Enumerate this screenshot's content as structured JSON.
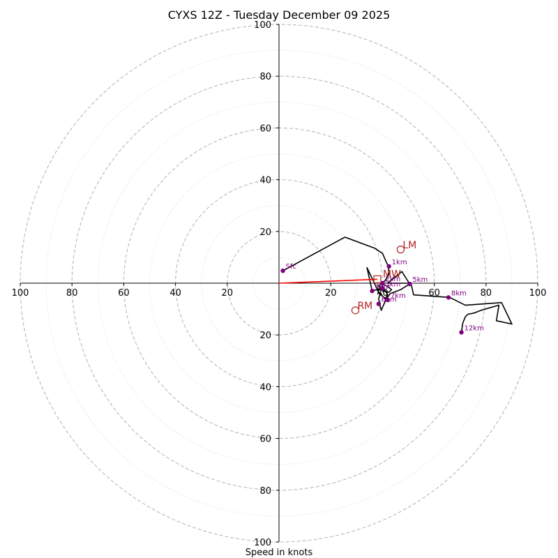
{
  "chart_data": {
    "type": "hodograph",
    "title": "CYXS 12Z - Tuesday December 09 2025",
    "xlabel": "Speed in knots",
    "rmax": 100,
    "ring_major": [
      20,
      40,
      60,
      80,
      100
    ],
    "ring_minor": [
      10,
      30,
      50,
      70,
      90
    ],
    "ticks": {
      "x_left": [
        "100",
        "80",
        "60",
        "40",
        "20"
      ],
      "x_right": [
        "20",
        "40",
        "60",
        "80",
        "100"
      ],
      "y_up": [
        "20",
        "40",
        "60",
        "80",
        "100"
      ],
      "y_down": [
        "20",
        "40",
        "60",
        "80",
        "100"
      ]
    },
    "hodograph_trace": [
      [
        1.5,
        4.8
      ],
      [
        25.5,
        17.8
      ],
      [
        37,
        13.5
      ],
      [
        40,
        11.5
      ],
      [
        42.2,
        6.5
      ],
      [
        42.5,
        3.5
      ],
      [
        41,
        1
      ],
      [
        40,
        0
      ],
      [
        38.5,
        -1
      ],
      [
        40,
        -3
      ],
      [
        42.5,
        -3.5
      ],
      [
        43.5,
        -2.5
      ],
      [
        41.5,
        -1
      ],
      [
        39.5,
        0
      ],
      [
        40.5,
        -2
      ],
      [
        42,
        -4.5
      ],
      [
        41,
        -6
      ],
      [
        38,
        -2.8
      ],
      [
        40,
        -1.8
      ],
      [
        36,
        -3
      ],
      [
        34,
        6
      ],
      [
        39,
        -4.5
      ],
      [
        38.5,
        -6
      ],
      [
        39.5,
        -10.5
      ],
      [
        41.5,
        -6
      ],
      [
        43,
        -4
      ],
      [
        47,
        -2.5
      ],
      [
        50.5,
        -0.3
      ],
      [
        47.5,
        4.5
      ],
      [
        42,
        0
      ],
      [
        51,
        0
      ],
      [
        52,
        -4.5
      ],
      [
        66,
        -5.5
      ],
      [
        72,
        -8.5
      ],
      [
        86,
        -7.5
      ],
      [
        90,
        -15.8
      ],
      [
        84,
        -14.5
      ],
      [
        85,
        -8.5
      ],
      [
        78,
        -10.5
      ],
      [
        75.5,
        -11.5
      ],
      [
        73,
        -12
      ],
      [
        72,
        -13
      ],
      [
        71,
        -15.5
      ],
      [
        70.5,
        -19
      ]
    ],
    "height_labels": [
      {
        "label": "Sfc",
        "u": 1.5,
        "v": 4.8
      },
      {
        "label": "1km",
        "u": 42.5,
        "v": 6.5
      },
      {
        "label": "2km",
        "u": 40,
        "v": 0
      },
      {
        "label": "3km",
        "u": 40,
        "v": -2
      },
      {
        "label": "4km",
        "u": 36,
        "v": -3
      },
      {
        "label": "5km",
        "u": 50.5,
        "v": -0.3
      },
      {
        "label": "6km",
        "u": 38.5,
        "v": -8
      },
      {
        "label": "7km",
        "u": 42,
        "v": -6.5
      },
      {
        "label": "8km",
        "u": 65.5,
        "v": -5.5
      },
      {
        "label": "12km",
        "u": 70.5,
        "v": -19
      }
    ],
    "storm_motion": {
      "mean_wind": {
        "label": "MW",
        "u": 38,
        "v": 1.5
      },
      "left_mover": {
        "label": "LM",
        "u": 47,
        "v": 13
      },
      "right_mover": {
        "label": "RM",
        "u": 29.5,
        "v": -10.5
      }
    },
    "colors": {
      "trace": "#000000",
      "points": "#800080",
      "markers": "#b22222",
      "mean_wind_vector": "#ff0000",
      "grid": "#bdbdbd"
    }
  }
}
